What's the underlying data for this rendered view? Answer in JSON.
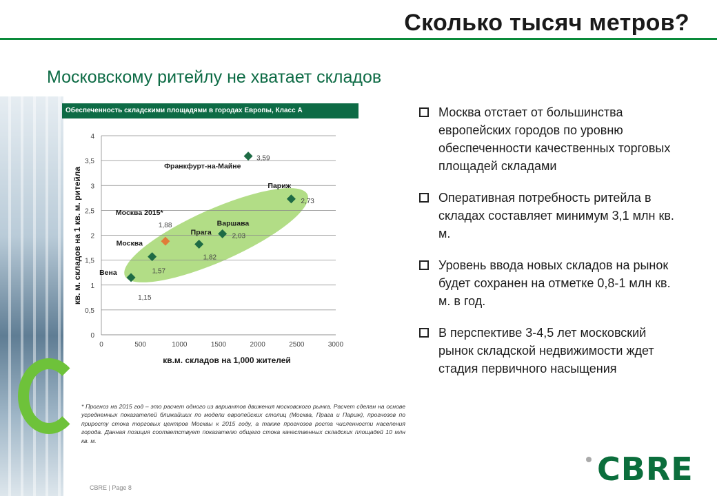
{
  "title": "Сколько тысяч метров?",
  "subtitle": "Московскому ритейлу не хватает складов",
  "chart_header": "Обеспеченность складскими площадями в городах Европы, Класс А",
  "chart_data": {
    "type": "scatter",
    "title": "Обеспеченность складскими площадями в городах Европы, Класс А",
    "xlabel": "кв.м. складов на 1,000 жителей",
    "ylabel": "кв. м. складов на 1 кв. м. ритейла",
    "xlim": [
      0,
      3000
    ],
    "ylim": [
      0,
      4
    ],
    "x_ticks": [
      "0",
      "500",
      "1000",
      "1500",
      "2000",
      "2500",
      "3000"
    ],
    "y_ticks": [
      "0",
      "0,5",
      "1",
      "1,5",
      "2",
      "2,5",
      "3",
      "3,5",
      "4"
    ],
    "grid": "horizontal",
    "points": [
      {
        "name": "Вена",
        "x": 380,
        "y": 1.15,
        "label": "1,15",
        "color": "#1e6b45"
      },
      {
        "name": "Москва",
        "x": 650,
        "y": 1.57,
        "label": "1,57",
        "color": "#1e6b45"
      },
      {
        "name": "Москва 2015*",
        "x": 820,
        "y": 1.88,
        "label": "1,88",
        "color": "#e07b39"
      },
      {
        "name": "Прага",
        "x": 1250,
        "y": 1.82,
        "label": "1,82",
        "color": "#1e6b45"
      },
      {
        "name": "Варшава",
        "x": 1550,
        "y": 2.03,
        "label": "2,03",
        "color": "#1e6b45"
      },
      {
        "name": "Париж",
        "x": 2430,
        "y": 2.73,
        "label": "2,73",
        "color": "#1e6b45"
      },
      {
        "name": "Франкфурт-на-Майне",
        "x": 1880,
        "y": 3.59,
        "label": "3,59",
        "color": "#1e6b45"
      }
    ],
    "highlight_color": "#9fd468"
  },
  "footnote": "* Прогноз на 2015 год – это расчет одного из вариантов движения московского рынка. Расчет сделан на основе усредненных показателей ближайших по модели европейских столиц (Москва, Прага и Париж), прогнозов по приросту стока торговых центров Москвы к 2015 году, а также прогнозов роста численности населения города. Данная позиция соответствует показателю общего стока качественных складских площадей 10 млн кв. м.",
  "bullets": [
    "Москва отстает от большинства европейских городов по уровню обеспеченности качественных торговых площадей складами",
    "Оперативная потребность ритейла в складах составляет минимум 3,1 млн кв. м.",
    "Уровень ввода новых складов на рынок будет сохранен на отметке 0,8-1 млн кв. м. в год.",
    "В перспективе 3-4,5 лет московский рынок складской недвижимости ждет стадия первичного насыщения"
  ],
  "footer": "CBRE | Page 8",
  "logo": "CBRE",
  "colors": {
    "brand_green": "#0d6b45",
    "accent_green": "#6ec23a",
    "orange": "#e07b39"
  }
}
